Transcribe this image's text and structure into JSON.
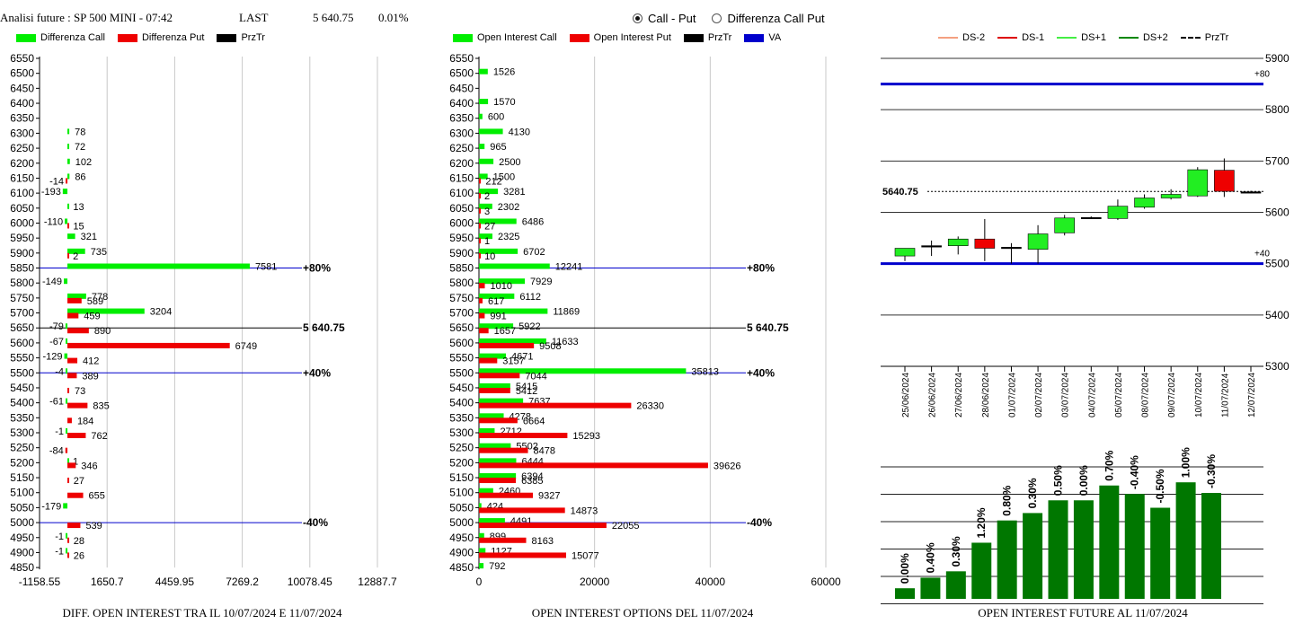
{
  "header": {
    "title": "Analisi future : SP 500 MINI - 07:42",
    "last_label": "LAST",
    "last_value": "5 640.75",
    "change": "0.01%"
  },
  "radio": [
    {
      "label": "Call - Put",
      "selected": true
    },
    {
      "label": "Differenza Call Put",
      "selected": false
    }
  ],
  "colors": {
    "call": "#00ee00",
    "put": "#ee0000",
    "przTr": "#000000",
    "va": "#0000cc",
    "ds_minus2": "#f4a080",
    "ds_minus1": "#dd0000",
    "ds_plus1": "#44ee44",
    "ds_plus2": "#008800",
    "future_bar": "#007700"
  },
  "legend1": [
    {
      "label": "Differenza Call",
      "color": "#00ee00"
    },
    {
      "label": "Differenza Put",
      "color": "#ee0000"
    },
    {
      "label": "PrzTr",
      "color": "#000000"
    }
  ],
  "legend2": [
    {
      "label": "Open Interest Call",
      "color": "#00ee00"
    },
    {
      "label": "Open Interest Put",
      "color": "#ee0000"
    },
    {
      "label": "PrzTr",
      "color": "#000000"
    },
    {
      "label": "VA",
      "color": "#0000cc"
    }
  ],
  "legend3": [
    {
      "label": "DS-2",
      "color": "#f4a080",
      "dashed": false
    },
    {
      "label": "DS-1",
      "color": "#dd0000",
      "dashed": false
    },
    {
      "label": "DS+1",
      "color": "#44ee44",
      "dashed": false
    },
    {
      "label": "DS+2",
      "color": "#008800",
      "dashed": false
    },
    {
      "label": "PrzTr",
      "color": "#000000",
      "dashed": true
    }
  ],
  "footers": {
    "diff": "DIFF. OPEN INTEREST TRA IL 10/07/2024 E 11/07/2024",
    "oi": "OPEN INTEREST OPTIONS DEL 11/07/2024",
    "future": "OPEN INTEREST FUTURE AL 11/07/2024"
  },
  "chart_data": [
    {
      "type": "bar",
      "orientation": "horizontal",
      "strikes": [
        6550,
        6500,
        6450,
        6400,
        6350,
        6300,
        6250,
        6200,
        6150,
        6100,
        6050,
        6000,
        5950,
        5900,
        5850,
        5800,
        5750,
        5700,
        5650,
        5600,
        5550,
        5500,
        5450,
        5400,
        5350,
        5300,
        5250,
        5200,
        5150,
        5100,
        5050,
        5000,
        4950,
        4900,
        4850
      ],
      "series": [
        {
          "name": "Differenza Call",
          "values": [
            null,
            null,
            null,
            null,
            null,
            78,
            72,
            102,
            86,
            -193,
            13,
            -110,
            321,
            735,
            7581,
            -149,
            778,
            3204,
            -79,
            -67,
            -129,
            -4,
            null,
            -61,
            null,
            -1,
            null,
            1,
            null,
            null,
            -179,
            null,
            -1,
            -1,
            null
          ]
        },
        {
          "name": "Differenza Put",
          "values": [
            null,
            null,
            null,
            null,
            null,
            null,
            null,
            null,
            -14,
            null,
            null,
            15,
            null,
            2,
            null,
            null,
            589,
            459,
            890,
            6749,
            412,
            389,
            73,
            835,
            184,
            762,
            -84,
            346,
            27,
            655,
            null,
            539,
            28,
            26,
            null
          ]
        }
      ],
      "x_ticks": [
        "-1158.55",
        "1650.7",
        "4459.95",
        "7269.2",
        "10078.45",
        "12887.7"
      ],
      "xlim": [
        -1158.55,
        12887.7
      ],
      "lines": [
        {
          "strike": 5850,
          "label": "+80%",
          "color": "#0000cc"
        },
        {
          "strike": 5650,
          "label": "5 640.75",
          "color": "#000000"
        },
        {
          "strike": 5500,
          "label": "+40%",
          "color": "#0000cc"
        },
        {
          "strike": 5000,
          "label": "-40%",
          "color": "#0000cc"
        }
      ],
      "title": "DIFF. OPEN INTEREST TRA IL 10/07/2024 E 11/07/2024"
    },
    {
      "type": "bar",
      "orientation": "horizontal",
      "strikes": [
        6550,
        6500,
        6450,
        6400,
        6350,
        6300,
        6250,
        6200,
        6150,
        6100,
        6050,
        6000,
        5950,
        5900,
        5850,
        5800,
        5750,
        5700,
        5650,
        5600,
        5550,
        5500,
        5450,
        5400,
        5350,
        5300,
        5250,
        5200,
        5150,
        5100,
        5050,
        5000,
        4950,
        4900,
        4850
      ],
      "series": [
        {
          "name": "Open Interest Call",
          "values": [
            null,
            1526,
            null,
            1570,
            600,
            4130,
            965,
            2500,
            1500,
            3281,
            2302,
            6486,
            2325,
            6702,
            12241,
            7929,
            6112,
            11869,
            5922,
            11633,
            4671,
            35813,
            5415,
            7637,
            4278,
            2712,
            5502,
            6444,
            6394,
            2460,
            424,
            4491,
            899,
            1127,
            792
          ]
        },
        {
          "name": "Open Interest Put",
          "values": [
            null,
            null,
            null,
            null,
            null,
            null,
            null,
            null,
            212,
            2,
            3,
            27,
            1,
            10,
            null,
            1010,
            617,
            991,
            1657,
            9508,
            3157,
            7044,
            5412,
            26330,
            6664,
            15293,
            8478,
            39626,
            6385,
            9327,
            14873,
            22055,
            8163,
            15077,
            null
          ]
        }
      ],
      "x_ticks": [
        "0",
        "20000",
        "40000",
        "60000"
      ],
      "xlim": [
        0,
        60000
      ],
      "lines": [
        {
          "strike": 5850,
          "label": "+80%",
          "color": "#0000cc"
        },
        {
          "strike": 5650,
          "label": "5 640.75",
          "color": "#000000"
        },
        {
          "strike": 5500,
          "label": "+40%",
          "color": "#0000cc"
        },
        {
          "strike": 5000,
          "label": "-40%",
          "color": "#0000cc"
        }
      ],
      "title": "OPEN INTEREST OPTIONS DEL 11/07/2024"
    },
    {
      "type": "candlestick",
      "dates": [
        "25/06/2024",
        "26/06/2024",
        "27/06/2024",
        "28/06/2024",
        "01/07/2024",
        "02/07/2024",
        "03/07/2024",
        "04/07/2024",
        "05/07/2024",
        "08/07/2024",
        "09/07/2024",
        "10/07/2024",
        "11/07/2024",
        "12/07/2024"
      ],
      "ohlc": [
        {
          "o": 5515,
          "h": 5530,
          "l": 5505,
          "c": 5530,
          "dir": "up"
        },
        {
          "o": 5533,
          "h": 5545,
          "l": 5515,
          "c": 5535,
          "dir": "flat"
        },
        {
          "o": 5535,
          "h": 5553,
          "l": 5518,
          "c": 5548,
          "dir": "up"
        },
        {
          "o": 5548,
          "h": 5587,
          "l": 5505,
          "c": 5530,
          "dir": "down"
        },
        {
          "o": 5532,
          "h": 5540,
          "l": 5500,
          "c": 5530,
          "dir": "flat"
        },
        {
          "o": 5528,
          "h": 5575,
          "l": 5500,
          "c": 5558,
          "dir": "up"
        },
        {
          "o": 5560,
          "h": 5595,
          "l": 5555,
          "c": 5589,
          "dir": "up"
        },
        {
          "o": 5589,
          "h": 5592,
          "l": 5588,
          "c": 5590,
          "dir": "flat"
        },
        {
          "o": 5588,
          "h": 5625,
          "l": 5585,
          "c": 5612,
          "dir": "up"
        },
        {
          "o": 5610,
          "h": 5635,
          "l": 5607,
          "c": 5628,
          "dir": "up"
        },
        {
          "o": 5628,
          "h": 5645,
          "l": 5625,
          "c": 5635,
          "dir": "up"
        },
        {
          "o": 5632,
          "h": 5688,
          "l": 5630,
          "c": 5683,
          "dir": "up"
        },
        {
          "o": 5682,
          "h": 5705,
          "l": 5630,
          "c": 5641,
          "dir": "down"
        },
        {
          "o": 5640,
          "h": 5642,
          "l": 5637,
          "c": 5640,
          "dir": "flat"
        }
      ],
      "y_ticks": [
        5900,
        5800,
        5700,
        5600,
        5500,
        5400,
        5300
      ],
      "ylim": [
        5300,
        5900
      ],
      "levels": [
        {
          "value": 5850,
          "label": "+80"
        },
        {
          "value": 5500,
          "label": "+40"
        }
      ],
      "przTr": {
        "value": 5640.75,
        "label": "5640.75"
      }
    },
    {
      "type": "bar",
      "categories": [
        "25/06/2024",
        "26/06/2024",
        "27/06/2024",
        "28/06/2024",
        "01/07/2024",
        "02/07/2024",
        "03/07/2024",
        "04/07/2024",
        "05/07/2024",
        "08/07/2024",
        "09/07/2024",
        "10/07/2024",
        "11/07/2024"
      ],
      "value_labels": [
        "0.00%",
        "0.40%",
        "0.30%",
        "1.20%",
        "0.80%",
        "0.30%",
        "0.50%",
        "0.00%",
        "0.70%",
        "-0.40%",
        "-0.50%",
        "1.00%",
        "-0.30%"
      ],
      "heights": [
        1.0,
        2.0,
        2.6,
        5.3,
        7.4,
        8.1,
        9.3,
        9.3,
        10.7,
        9.9,
        8.6,
        11.0,
        10.0
      ],
      "ylim": [
        0,
        12.5
      ],
      "title": "OPEN INTEREST FUTURE AL 11/07/2024"
    }
  ]
}
